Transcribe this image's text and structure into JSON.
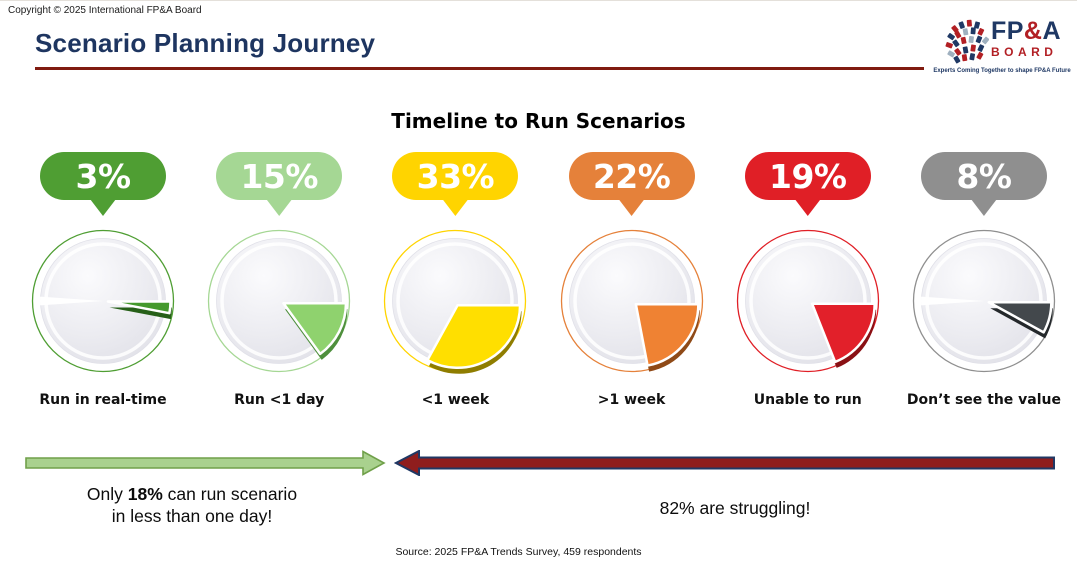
{
  "page": {
    "copyright": "Copyright © 2025 International FP&A Board",
    "title": "Scenario Planning Journey",
    "title_color": "#1e3560",
    "accent_underline_color": "#801b10",
    "source": "Source: 2025 FP&A Trends Survey, 459 respondents"
  },
  "logo": {
    "fp": "FP",
    "amp": "&",
    "a": "A",
    "board": "BOARD",
    "tagline": "Experts Coming Together to shape FP&A Future",
    "navy": "#1f3864",
    "red": "#b21f24",
    "gray": "#9fb0bf"
  },
  "chart_data": {
    "type": "pie",
    "title": "Timeline to Run Scenarios",
    "unit": "%",
    "categories": [
      "Run in real-time",
      "Run <1 day",
      "<1 week",
      ">1 week",
      "Unable to run",
      "Don’t see the value"
    ],
    "values": [
      3,
      15,
      33,
      22,
      19,
      8
    ],
    "colors": [
      "#4f9e33",
      "#a5d794",
      "#ffd400",
      "#e5813a",
      "#e01f26",
      "#8f8f8f"
    ],
    "wedge_colors": [
      "#44992c",
      "#8fd26e",
      "#ffdf00",
      "#ef8233",
      "#e2202a",
      "#43484c"
    ],
    "edge_colors": [
      "#265f18",
      "#4e8f3c",
      "#8f7d00",
      "#8f4a17",
      "#8a1014",
      "#24282b"
    ],
    "layout": "six exploded 3D pie gauges left-to-right, percentage callout bubble above each, category label below"
  },
  "annotations": {
    "left": {
      "line1_pre": "Only ",
      "line1_bold": "18%",
      "line1_post": " can run scenario",
      "line2": "in less than one day!"
    },
    "right": "82% are struggling!"
  },
  "arrows": {
    "green": {
      "fill": "#a9d18e",
      "stroke": "#70a04a"
    },
    "red": {
      "fill": "#8f1d1d",
      "stroke": "#203864"
    }
  }
}
